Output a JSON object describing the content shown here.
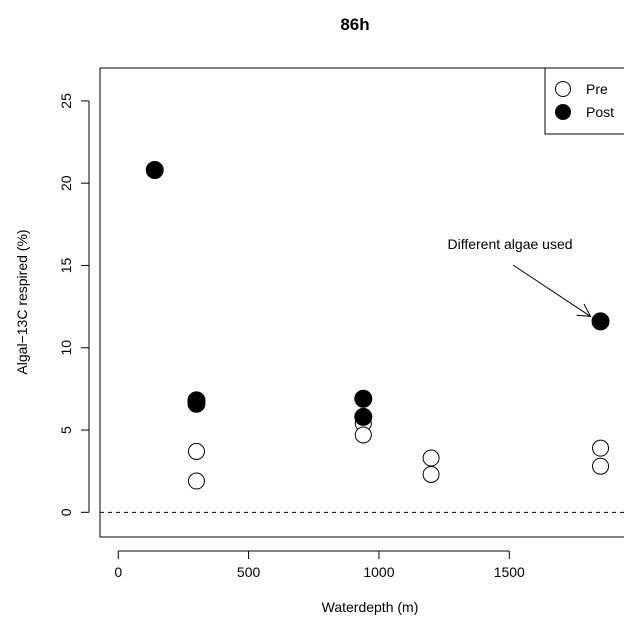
{
  "chart_data": {
    "type": "scatter",
    "title": "86h",
    "xlabel": "Waterdepth (m)",
    "ylabel": "Algal−13C respired (%)",
    "xlim": [
      -70,
      1940
    ],
    "ylim": [
      -1.5,
      27.0
    ],
    "xticks": [
      0,
      500,
      1000,
      1500
    ],
    "yticks": [
      0,
      5,
      10,
      15,
      20,
      25
    ],
    "reference_line": {
      "y": 0,
      "style": "dashed"
    },
    "legend": {
      "placement": "top-right",
      "entries": [
        "Pre",
        "Post"
      ]
    },
    "series": [
      {
        "name": "Pre",
        "marker": "open-circle",
        "points": [
          {
            "x": 300,
            "y": 3.7
          },
          {
            "x": 300,
            "y": 1.9
          },
          {
            "x": 940,
            "y": 5.4
          },
          {
            "x": 940,
            "y": 4.7
          },
          {
            "x": 1200,
            "y": 3.3
          },
          {
            "x": 1200,
            "y": 2.3
          },
          {
            "x": 1850,
            "y": 3.9
          },
          {
            "x": 1850,
            "y": 2.8
          }
        ]
      },
      {
        "name": "Post",
        "marker": "filled-circle",
        "points": [
          {
            "x": 140,
            "y": 20.8
          },
          {
            "x": 300,
            "y": 6.8
          },
          {
            "x": 300,
            "y": 6.6
          },
          {
            "x": 940,
            "y": 6.9
          },
          {
            "x": 940,
            "y": 5.8
          },
          {
            "x": 1850,
            "y": 11.6
          }
        ]
      }
    ],
    "annotations": [
      {
        "text": "Different algae used",
        "points_to": {
          "x": 1850,
          "y": 11.6
        }
      }
    ]
  }
}
